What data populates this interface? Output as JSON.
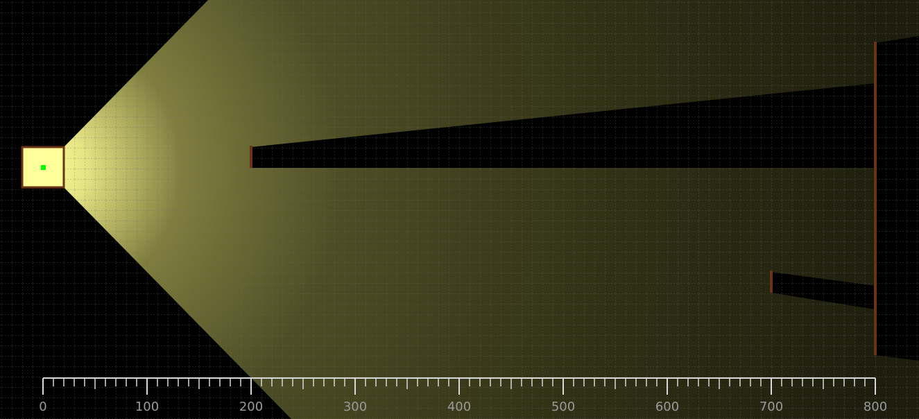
{
  "ruler": {
    "labels": [
      "0",
      "100",
      "200",
      "300",
      "400",
      "500",
      "600",
      "700",
      "800"
    ],
    "major_step": 100,
    "minor_step": 10
  },
  "colors": {
    "background": "#000000",
    "light_core": "#ffff99",
    "light_mid": "#7a7a3a",
    "light_far": "#2c2c12",
    "wall": "#5a2a12",
    "source_dot": "#00ff00",
    "grid": "#6a6a6a",
    "ruler": "#d8d8d8",
    "ruler_text": "#9a9a9a"
  },
  "icons": {
    "light_source": "lamp-icon",
    "source_marker": "green-dot"
  }
}
